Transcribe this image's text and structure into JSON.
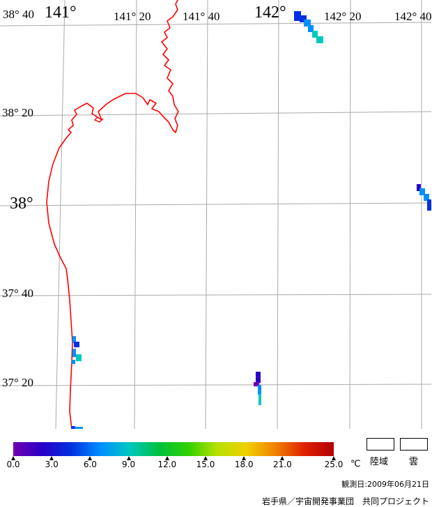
{
  "map": {
    "grid_color": "#aaaaaa",
    "coast_color": "#ff0000",
    "lon_labels": [
      {
        "text": "141°",
        "size": "lg"
      },
      {
        "text": "141° 20",
        "size": "sm"
      },
      {
        "text": "141° 40",
        "size": "sm"
      },
      {
        "text": "142°",
        "size": "lg"
      },
      {
        "text": "142° 20",
        "size": "sm"
      },
      {
        "text": "142° 40",
        "size": "sm"
      }
    ],
    "lat_labels": [
      {
        "text": "38° 40",
        "size": "sm"
      },
      {
        "text": "38° 20",
        "size": "sm"
      },
      {
        "text": "38°",
        "size": "lg"
      },
      {
        "text": "37° 40",
        "size": "sm"
      },
      {
        "text": "37° 20",
        "size": "sm"
      }
    ]
  },
  "colorbar": {
    "min": 0.0,
    "max": 25.0,
    "ticks": [
      "0.0",
      "3.0",
      "6.0",
      "9.0",
      "12.0",
      "15.0",
      "18.0",
      "21.0",
      "25.0"
    ],
    "unit": "℃",
    "colors": [
      "#7000b0",
      "#2a00c8",
      "#0030e0",
      "#0090ff",
      "#00c8c0",
      "#00c040",
      "#30d000",
      "#b8e000",
      "#f0d000",
      "#f08000",
      "#e02000",
      "#b00000"
    ]
  },
  "legend": {
    "land_label": "陸域",
    "cloud_label": "雲"
  },
  "footer": {
    "observation_date": "観測日:2009年06月21日",
    "credit": "岩手県／宇宙開発事業団　共同プロジェクト"
  }
}
